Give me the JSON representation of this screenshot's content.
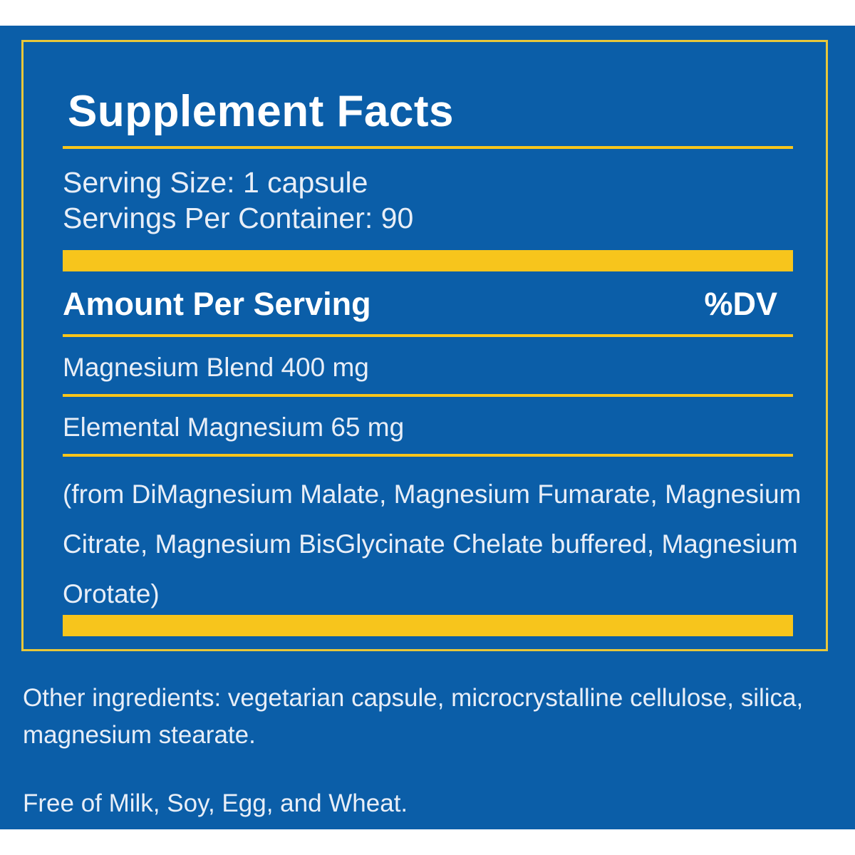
{
  "label": {
    "title": "Supplement Facts",
    "serving_size": "Serving Size: 1 capsule",
    "servings_per_container": "Servings Per Container: 90",
    "amount_header": "Amount Per Serving",
    "dv_header": "%DV",
    "rows": [
      "Magnesium Blend 400 mg",
      "Elemental Magnesium 65 mg"
    ],
    "sources": "(from DiMagnesium Malate, Magnesium Fumarate, Magnesium Citrate, Magnesium BisGlycinate Chelate buffered, Magnesium Orotate)"
  },
  "other_ingredients": "Other ingredients: vegetarian capsule, microcrystalline cellulose, silica, magnesium stearate.",
  "allergen_statement": "Free of Milk, Soy, Egg, and Wheat.",
  "colors": {
    "background": "#0b5ea8",
    "accent": "#f7c51c",
    "text": "#ffffff"
  }
}
